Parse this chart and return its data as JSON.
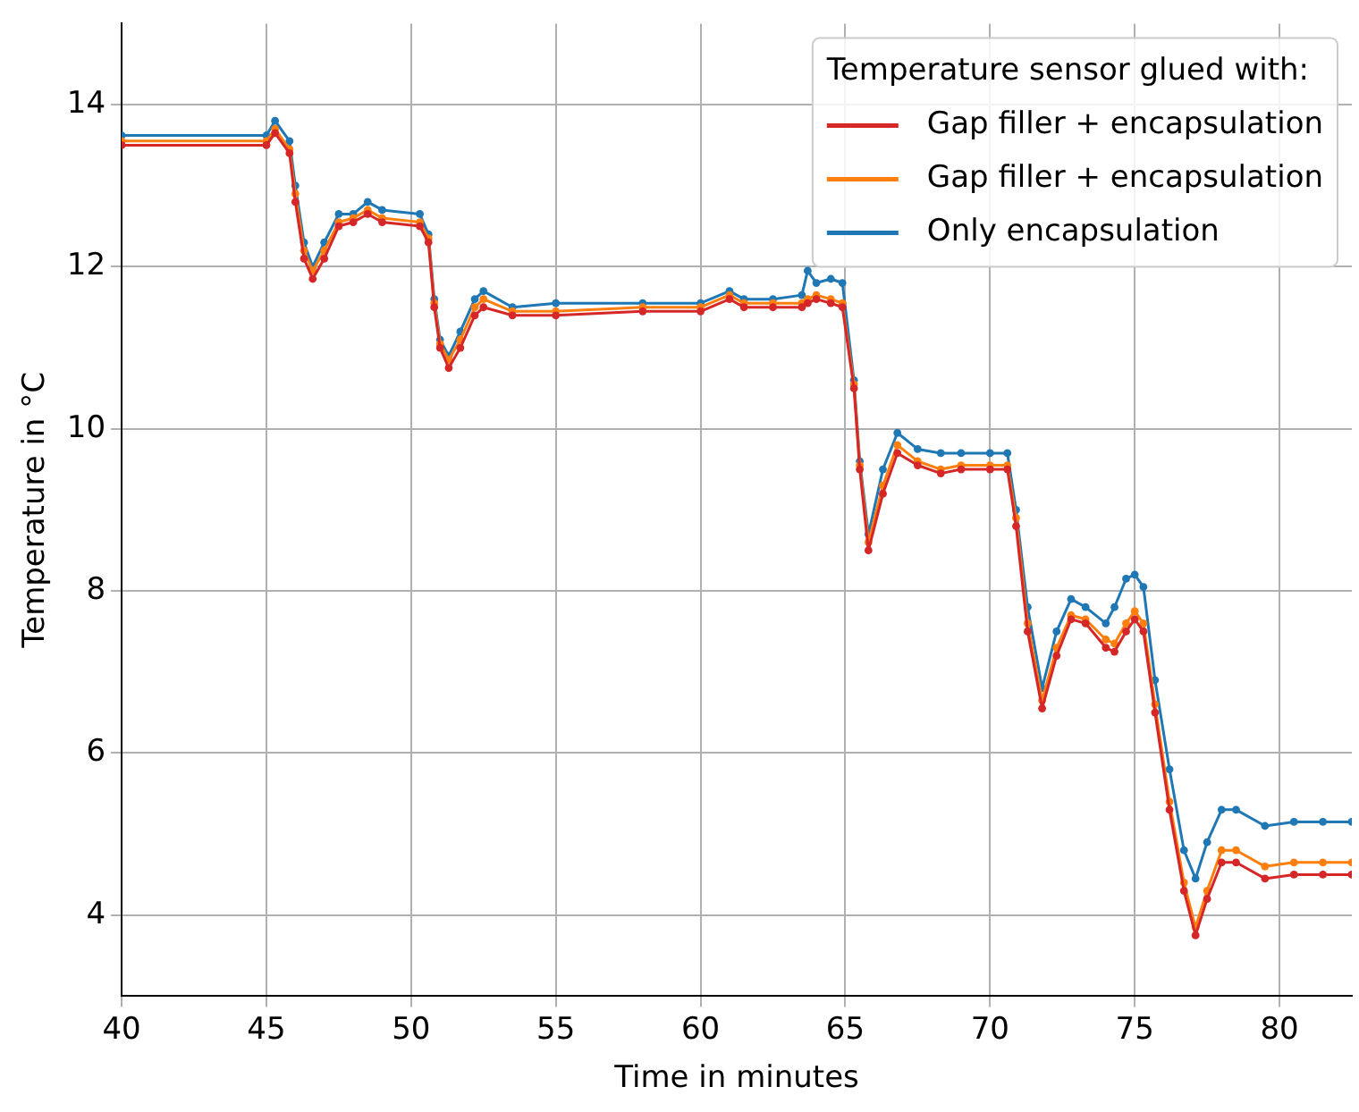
{
  "chart_data": {
    "type": "line",
    "xlabel": "Time in minutes",
    "ylabel": "Temperature in °C",
    "legend_title": "Temperature sensor glued with:",
    "legend": "top right",
    "grid": true,
    "marker": "circle",
    "xlim": [
      40,
      82.5
    ],
    "xticks": [
      40,
      45,
      50,
      55,
      60,
      65,
      70,
      75,
      80
    ],
    "ylim": [
      3,
      15
    ],
    "yticks": [
      4,
      6,
      8,
      10,
      12,
      14
    ],
    "x": [
      40,
      45,
      45.3,
      45.8,
      46,
      46.3,
      46.6,
      47,
      47.5,
      48,
      48.5,
      49,
      50.3,
      50.6,
      50.8,
      51,
      51.3,
      51.7,
      52.2,
      52.5,
      53.5,
      55,
      58,
      60,
      61,
      61.5,
      62.5,
      63.5,
      63.7,
      64,
      64.5,
      64.9,
      65.3,
      65.5,
      65.8,
      66.3,
      66.8,
      67.5,
      68.3,
      69,
      70,
      70.6,
      70.9,
      71.3,
      71.8,
      72.3,
      72.8,
      73.3,
      74,
      74.3,
      74.7,
      75,
      75.3,
      75.7,
      76.2,
      76.7,
      77.1,
      77.5,
      78,
      78.5,
      79.5,
      80.5,
      81.5,
      82.5
    ],
    "series": [
      {
        "name": "Gap filler + encapsulation",
        "color": "#d62728",
        "values": [
          13.5,
          13.5,
          13.65,
          13.4,
          12.8,
          12.1,
          11.85,
          12.1,
          12.5,
          12.55,
          12.65,
          12.55,
          12.5,
          12.3,
          11.5,
          11,
          10.75,
          11,
          11.4,
          11.5,
          11.4,
          11.4,
          11.45,
          11.45,
          11.6,
          11.5,
          11.5,
          11.5,
          11.55,
          11.6,
          11.55,
          11.5,
          10.5,
          9.5,
          8.5,
          9.2,
          9.7,
          9.55,
          9.45,
          9.5,
          9.5,
          9.5,
          8.8,
          7.5,
          6.55,
          7.2,
          7.65,
          7.6,
          7.3,
          7.25,
          7.5,
          7.65,
          7.5,
          6.5,
          5.3,
          4.3,
          3.75,
          4.2,
          4.65,
          4.65,
          4.45,
          4.5,
          4.5,
          4.5
        ]
      },
      {
        "name": "Gap filler + encapsulation",
        "color": "#ff7f0e",
        "values": [
          13.55,
          13.55,
          13.7,
          13.45,
          12.9,
          12.2,
          11.95,
          12.2,
          12.55,
          12.6,
          12.7,
          12.6,
          12.55,
          12.35,
          11.55,
          11.05,
          10.85,
          11.1,
          11.5,
          11.6,
          11.45,
          11.45,
          11.5,
          11.5,
          11.65,
          11.55,
          11.55,
          11.55,
          11.6,
          11.65,
          11.6,
          11.55,
          10.55,
          9.55,
          8.6,
          9.3,
          9.8,
          9.6,
          9.5,
          9.55,
          9.55,
          9.55,
          8.9,
          7.6,
          6.65,
          7.3,
          7.7,
          7.65,
          7.4,
          7.35,
          7.6,
          7.75,
          7.6,
          6.6,
          5.4,
          4.4,
          3.85,
          4.3,
          4.8,
          4.8,
          4.6,
          4.65,
          4.65,
          4.65
        ]
      },
      {
        "name": "Only encapsulation",
        "color": "#1f77b4",
        "values": [
          13.62,
          13.62,
          13.8,
          13.55,
          13,
          12.3,
          12,
          12.3,
          12.65,
          12.65,
          12.8,
          12.7,
          12.65,
          12.4,
          11.6,
          11.1,
          10.9,
          11.2,
          11.6,
          11.7,
          11.5,
          11.55,
          11.55,
          11.55,
          11.7,
          11.6,
          11.6,
          11.65,
          11.95,
          11.8,
          11.85,
          11.8,
          10.6,
          9.6,
          8.7,
          9.5,
          9.95,
          9.75,
          9.7,
          9.7,
          9.7,
          9.7,
          9,
          7.8,
          6.8,
          7.5,
          7.9,
          7.8,
          7.6,
          7.8,
          8.15,
          8.2,
          8.05,
          6.9,
          5.8,
          4.8,
          4.45,
          4.9,
          5.3,
          5.3,
          5.1,
          5.15,
          5.15,
          5.15
        ]
      }
    ]
  }
}
